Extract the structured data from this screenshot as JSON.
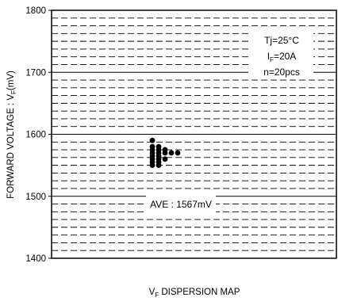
{
  "chart_data": {
    "type": "scatter",
    "title": "",
    "xlabel": {
      "prefix": "V",
      "sub": "F",
      "text": " DISPERSION MAP"
    },
    "ylabel": {
      "prefix": "FORWARD VOLTAGE : V",
      "sub": "F",
      "suffix": "(mV)"
    },
    "ylim": [
      1400,
      1800
    ],
    "yticks": [
      1400,
      1500,
      1600,
      1700,
      1800
    ],
    "grid": true,
    "grid_minor_step": 12.5,
    "conditions": {
      "line1": "Tj=25°C",
      "line2_prefix": "I",
      "line2_sub": "F",
      "line2_suffix": "=20A",
      "line3": "n=20pcs"
    },
    "average_label": "AVE : 1567mV",
    "average_value": 1567,
    "points": [
      {
        "col": 0,
        "y": 1590
      },
      {
        "col": 0,
        "y": 1580
      },
      {
        "col": 0,
        "y": 1575
      },
      {
        "col": 0,
        "y": 1570
      },
      {
        "col": 0,
        "y": 1565
      },
      {
        "col": 0,
        "y": 1560
      },
      {
        "col": 0,
        "y": 1555
      },
      {
        "col": 0,
        "y": 1550
      },
      {
        "col": 1,
        "y": 1580
      },
      {
        "col": 1,
        "y": 1575
      },
      {
        "col": 1,
        "y": 1570
      },
      {
        "col": 1,
        "y": 1565
      },
      {
        "col": 1,
        "y": 1560
      },
      {
        "col": 1,
        "y": 1555
      },
      {
        "col": 1,
        "y": 1550
      },
      {
        "col": 2,
        "y": 1575
      },
      {
        "col": 2,
        "y": 1570
      },
      {
        "col": 2,
        "y": 1560
      },
      {
        "col": 3,
        "y": 1570
      },
      {
        "col": 4,
        "y": 1570
      }
    ]
  }
}
